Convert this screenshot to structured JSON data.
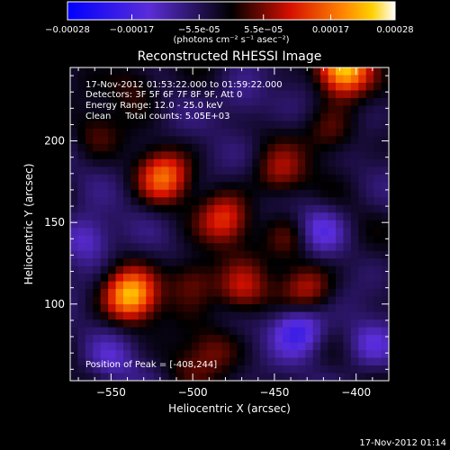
{
  "chart_data": {
    "type": "heatmap",
    "title": "Reconstructed RHESSI Image",
    "xlabel": "Heliocentric X (arcsec)",
    "ylabel": "Heliocentric Y (arcsec)",
    "xlim": [
      -575,
      -380
    ],
    "ylim": [
      53,
      245
    ],
    "xticks": [
      -550,
      -500,
      -450,
      -400
    ],
    "yticks": [
      100,
      150,
      200
    ],
    "colorbar": {
      "ticks": [
        "-0.00028",
        "-0.00017",
        "-5.5e-05",
        "5.5e-05",
        "0.00017",
        "0.00028"
      ],
      "label": "(photons cm⁻² s⁻¹ asec⁻²)",
      "range": [
        -0.00028,
        0.00028
      ]
    },
    "annotations": [
      "17-Nov-2012 01:53:22.000 to 01:59:22.000",
      "Detectors: 3F 5F 6F 7F 8F 9F, Att 0",
      "Energy Range: 12.0 - 25.0 keV",
      "Clean     Total counts: 5.05E+03"
    ],
    "peak_label": "Position of Peak = [-408,244]",
    "peak": [
      -408,
      244
    ],
    "sources": [
      {
        "x": -408,
        "y": 244,
        "value": 0.00028
      },
      {
        "x": -538,
        "y": 105,
        "value": 0.00026
      },
      {
        "x": -518,
        "y": 178,
        "value": 0.00019
      },
      {
        "x": -480,
        "y": 152,
        "value": 0.00015
      },
      {
        "x": -470,
        "y": 108,
        "value": 0.00013
      },
      {
        "x": -430,
        "y": 110,
        "value": 0.00012
      },
      {
        "x": -500,
        "y": 115,
        "value": 0.00011
      },
      {
        "x": -447,
        "y": 180,
        "value": 0.00011
      },
      {
        "x": -415,
        "y": 205,
        "value": 9e-05
      },
      {
        "x": -535,
        "y": 235,
        "value": 8e-05
      },
      {
        "x": -440,
        "y": 140,
        "value": 9e-05
      },
      {
        "x": -560,
        "y": 205,
        "value": 6e-05
      },
      {
        "x": -488,
        "y": 72,
        "value": 7e-05
      },
      {
        "x": -505,
        "y": 60,
        "value": 5e-05
      }
    ],
    "sinks": [
      {
        "x": -565,
        "y": 140,
        "value": -0.00012
      },
      {
        "x": -435,
        "y": 85,
        "value": -0.00016
      },
      {
        "x": -423,
        "y": 145,
        "value": -0.00011
      },
      {
        "x": -392,
        "y": 75,
        "value": -9e-05
      },
      {
        "x": -470,
        "y": 225,
        "value": -7e-05
      },
      {
        "x": -550,
        "y": 65,
        "value": -7e-05
      }
    ]
  },
  "footer": {
    "date": "17-Nov-2012 01:14"
  }
}
